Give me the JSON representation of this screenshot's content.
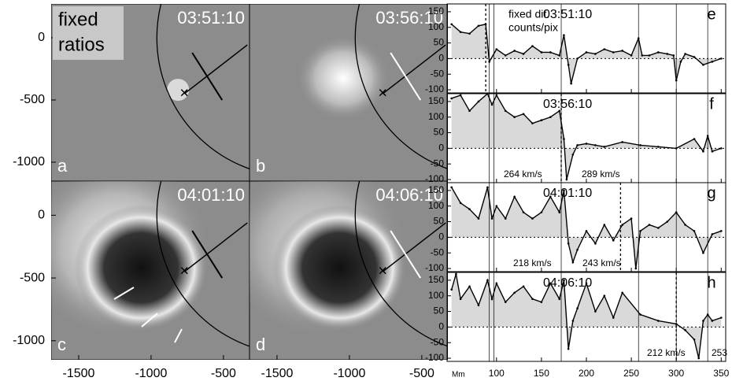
{
  "image_panels": {
    "panels": [
      {
        "letter": "a",
        "time": "03:51:10"
      },
      {
        "letter": "b",
        "time": "03:56:10"
      },
      {
        "letter": "c",
        "time": "04:01:10"
      },
      {
        "letter": "d",
        "time": "04:06:10"
      }
    ],
    "legend": [
      "fixed",
      "ratios"
    ],
    "xlim": [
      -1690,
      -320
    ],
    "ylim": [
      272,
      -1152
    ],
    "xticks": [
      -1500,
      -1000,
      -500
    ],
    "yticks": [
      0,
      -500,
      -1000
    ]
  },
  "chart_data": [
    {
      "type": "line",
      "letter": "e",
      "time": "03:51:10",
      "annotations": [
        "fixed dif.",
        "counts/pix"
      ],
      "x": [
        50,
        60,
        70,
        80,
        88,
        92,
        100,
        110,
        120,
        130,
        140,
        150,
        160,
        170,
        175,
        180,
        183,
        190,
        200,
        210,
        220,
        230,
        240,
        250,
        258,
        262,
        270,
        280,
        290,
        297,
        300,
        305,
        310,
        320,
        330,
        340,
        350
      ],
      "values": [
        110,
        85,
        80,
        105,
        110,
        -10,
        30,
        10,
        25,
        15,
        40,
        20,
        20,
        10,
        75,
        -20,
        -80,
        0,
        20,
        15,
        30,
        20,
        25,
        10,
        65,
        10,
        10,
        20,
        15,
        10,
        -70,
        -10,
        15,
        5,
        -20,
        -10,
        0
      ],
      "xlim": [
        45,
        355
      ],
      "ylim": [
        -110,
        175
      ],
      "yticks": [
        -100,
        -50,
        0,
        50,
        100,
        150
      ],
      "vlines": [
        92,
        97,
        172,
        258,
        300,
        335
      ],
      "dotted_line": 88
    },
    {
      "type": "line",
      "letter": "f",
      "time": "03:56:10",
      "annotations": [
        "264 km/s",
        "289 km/s"
      ],
      "x": [
        50,
        60,
        70,
        80,
        90,
        95,
        100,
        110,
        120,
        130,
        140,
        150,
        160,
        170,
        175,
        178,
        185,
        190,
        200,
        210,
        220,
        240,
        260,
        280,
        300,
        320,
        330,
        335,
        340,
        350
      ],
      "values": [
        160,
        170,
        120,
        150,
        175,
        140,
        170,
        120,
        100,
        110,
        80,
        90,
        100,
        120,
        30,
        -100,
        -20,
        10,
        15,
        10,
        5,
        20,
        10,
        5,
        0,
        30,
        -10,
        40,
        -10,
        0
      ],
      "xlim": [
        45,
        355
      ],
      "ylim": [
        -110,
        175
      ],
      "yticks": [
        -100,
        -50,
        0,
        50,
        100,
        150
      ],
      "vlines": [
        92,
        97,
        172,
        258,
        300,
        335
      ],
      "dotted_line": 172
    },
    {
      "type": "line",
      "letter": "g",
      "time": "04:01:10",
      "annotations": [
        "218 km/s",
        "243 km/s"
      ],
      "x": [
        50,
        60,
        70,
        80,
        90,
        95,
        100,
        110,
        120,
        130,
        140,
        150,
        160,
        170,
        175,
        180,
        185,
        190,
        200,
        210,
        220,
        230,
        240,
        250,
        255,
        260,
        270,
        280,
        290,
        300,
        310,
        320,
        330,
        340,
        350
      ],
      "values": [
        160,
        110,
        90,
        60,
        160,
        60,
        100,
        60,
        130,
        80,
        60,
        80,
        130,
        80,
        150,
        -20,
        -80,
        -40,
        20,
        -20,
        40,
        -10,
        40,
        60,
        -100,
        20,
        40,
        30,
        50,
        80,
        40,
        20,
        -50,
        10,
        20
      ],
      "xlim": [
        45,
        355
      ],
      "ylim": [
        -110,
        175
      ],
      "yticks": [
        -100,
        -50,
        0,
        50,
        100,
        150
      ],
      "vlines": [
        92,
        97,
        172,
        258,
        300,
        335
      ],
      "dotted_line": 238
    },
    {
      "type": "line",
      "letter": "h",
      "time": "04:06:10",
      "annotations": [
        "212 km/s",
        "253"
      ],
      "x": [
        50,
        55,
        60,
        70,
        80,
        90,
        95,
        100,
        110,
        120,
        130,
        140,
        150,
        160,
        170,
        175,
        180,
        185,
        190,
        200,
        210,
        220,
        230,
        240,
        260,
        280,
        300,
        310,
        320,
        325,
        330,
        335,
        340,
        350
      ],
      "values": [
        120,
        170,
        90,
        130,
        70,
        150,
        90,
        140,
        80,
        110,
        130,
        90,
        80,
        140,
        90,
        150,
        -70,
        20,
        60,
        140,
        50,
        100,
        30,
        110,
        40,
        20,
        10,
        -10,
        -40,
        -100,
        20,
        40,
        20,
        30
      ],
      "xlim": [
        45,
        355
      ],
      "ylim": [
        -110,
        175
      ],
      "yticks": [
        -100,
        -50,
        0,
        50,
        100,
        150
      ],
      "vlines": [
        92,
        97,
        172,
        258,
        300,
        335
      ],
      "dotted_line": 300,
      "x_label": "Mm",
      "xticks": [
        100,
        150,
        200,
        250,
        300,
        350
      ]
    }
  ]
}
